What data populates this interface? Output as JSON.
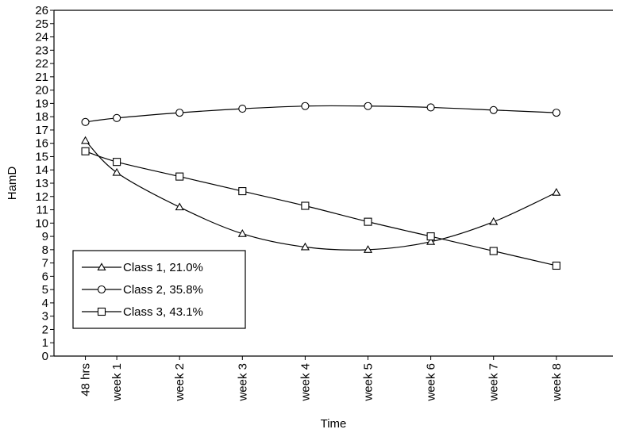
{
  "chart_data": {
    "type": "line",
    "title": "",
    "xlabel": "Time",
    "ylabel": "HamD",
    "ylim": [
      0,
      26
    ],
    "y_ticks": [
      0,
      1,
      2,
      3,
      4,
      5,
      6,
      7,
      8,
      9,
      10,
      11,
      12,
      13,
      14,
      15,
      16,
      17,
      18,
      19,
      20,
      21,
      22,
      23,
      24,
      25,
      26
    ],
    "categories": [
      "48 hrs",
      "week 1",
      "week 2",
      "week 3",
      "week 4",
      "week 5",
      "week 6",
      "week 7",
      "week 8"
    ],
    "x": [
      0.5,
      1,
      2,
      3,
      4,
      5,
      6,
      7,
      8
    ],
    "grid": false,
    "legend_position": "bottom-left",
    "series": [
      {
        "name": "Class 1, 21.0%",
        "marker": "triangle",
        "values": [
          16.2,
          13.8,
          11.2,
          9.2,
          8.2,
          8.0,
          8.6,
          10.1,
          12.3
        ]
      },
      {
        "name": "Class 2, 35.8%",
        "marker": "circle",
        "values": [
          17.6,
          17.9,
          18.3,
          18.6,
          18.8,
          18.8,
          18.7,
          18.5,
          18.3
        ]
      },
      {
        "name": "Class 3, 43.1%",
        "marker": "square",
        "values": [
          15.4,
          14.6,
          13.5,
          12.4,
          11.3,
          10.1,
          9.0,
          7.9,
          6.8
        ]
      }
    ]
  }
}
